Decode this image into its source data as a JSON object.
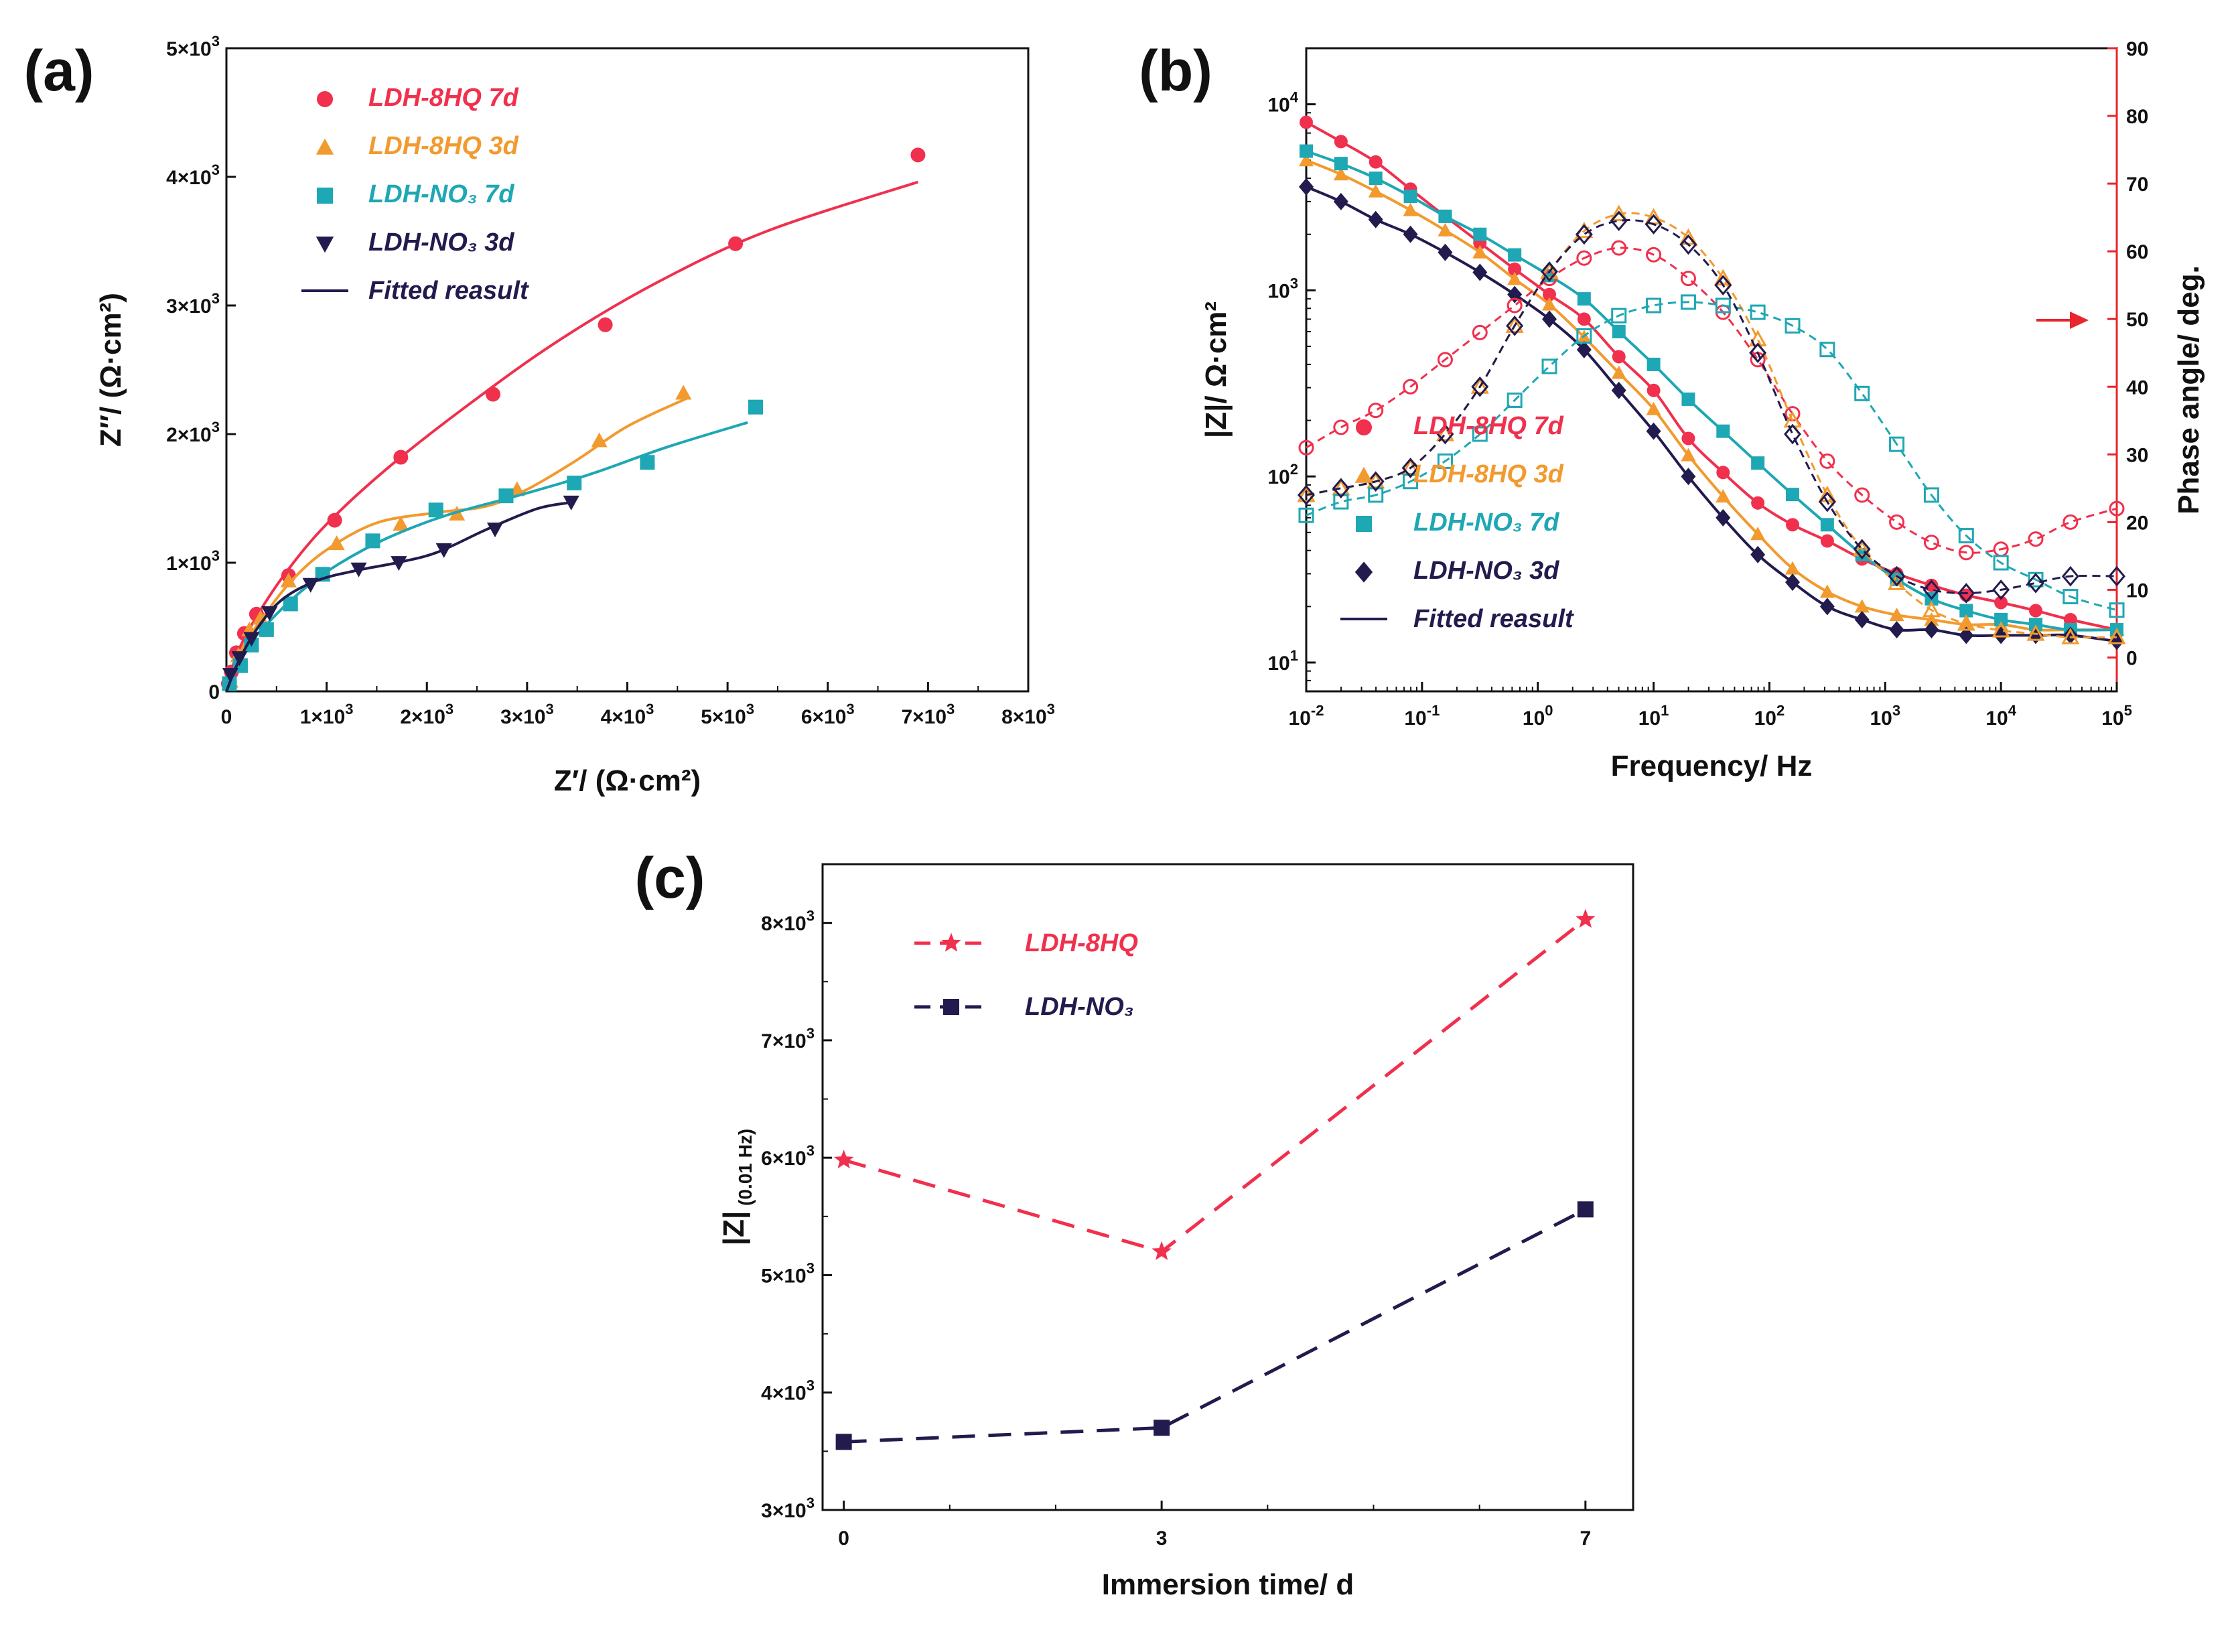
{
  "colors": {
    "red": "#F0304D",
    "orange": "#F29A2E",
    "teal": "#1EA7B4",
    "navy": "#221B4D",
    "phase_axis": "#E8242C"
  },
  "chart_data": [
    {
      "panel": "(a)",
      "type": "scatter",
      "subtype": "nyquist",
      "xlabel": "Z′/ (Ω·cm²)",
      "ylabel": "Z″/ (Ω·cm²)",
      "xlim": [
        0,
        8000
      ],
      "ylim": [
        0,
        5000
      ],
      "x_ticks": [
        "0",
        "1×10³",
        "2×10³",
        "3×10³",
        "4×10³",
        "5×10³",
        "6×10³",
        "7×10³",
        "8×10³"
      ],
      "y_ticks": [
        "0",
        "1×10³",
        "2×10³",
        "3×10³",
        "4×10³",
        "5×10³"
      ],
      "legend": [
        "LDH-8HQ 7d",
        "LDH-8HQ 3d",
        "LDH-NO₃ 7d",
        "LDH-NO₃ 3d",
        "Fitted reasult"
      ],
      "series": [
        {
          "name": "LDH-8HQ 7d",
          "color": "red",
          "marker": "circle",
          "x": [
            20,
            50,
            100,
            180,
            300,
            620,
            1080,
            1740,
            2660,
            3780,
            5080,
            6900
          ],
          "y": [
            60,
            150,
            300,
            450,
            600,
            900,
            1330,
            1820,
            2310,
            2850,
            3480,
            4170
          ],
          "fit_x": [
            0,
            100,
            300,
            600,
            1000,
            1600,
            2400,
            3300,
            4300,
            5400,
            6900
          ],
          "fit_y": [
            0,
            280,
            580,
            930,
            1300,
            1730,
            2220,
            2720,
            3180,
            3580,
            3960
          ]
        },
        {
          "name": "LDH-8HQ 3d",
          "color": "orange",
          "marker": "triangle",
          "x": [
            40,
            120,
            230,
            340,
            620,
            1100,
            1740,
            2300,
            2900,
            3720,
            4560
          ],
          "y": [
            80,
            280,
            480,
            570,
            860,
            1150,
            1300,
            1380,
            1570,
            1950,
            2320
          ],
          "fit_x": [
            0,
            150,
            350,
            650,
            1000,
            1500,
            2100,
            2600,
            3000,
            3500,
            4000,
            4600
          ],
          "fit_y": [
            0,
            320,
            560,
            860,
            1100,
            1310,
            1390,
            1440,
            1570,
            1800,
            2060,
            2280
          ]
        },
        {
          "name": "LDH-NO₃ 7d",
          "color": "teal",
          "marker": "square",
          "x": [
            30,
            140,
            250,
            400,
            640,
            960,
            1460,
            2090,
            2790,
            3470,
            4200,
            5280
          ],
          "y": [
            60,
            200,
            360,
            480,
            680,
            910,
            1170,
            1410,
            1520,
            1620,
            1780,
            2210
          ],
          "fit_x": [
            0,
            200,
            450,
            750,
            1100,
            1600,
            2200,
            2900,
            3600,
            4400,
            5200
          ],
          "fit_y": [
            0,
            330,
            560,
            780,
            980,
            1190,
            1370,
            1520,
            1680,
            1900,
            2090
          ]
        },
        {
          "name": "LDH-NO₃ 3d",
          "color": "navy",
          "marker": "triangle-down",
          "x": [
            40,
            130,
            250,
            430,
            840,
            1320,
            1720,
            2170,
            2680,
            3440
          ],
          "y": [
            130,
            260,
            410,
            610,
            830,
            950,
            1000,
            1100,
            1260,
            1470
          ],
          "fit_x": [
            0,
            120,
            300,
            550,
            900,
            1300,
            1700,
            2100,
            2600,
            3100,
            3450
          ],
          "fit_y": [
            0,
            230,
            480,
            710,
            860,
            940,
            1000,
            1080,
            1260,
            1420,
            1470
          ]
        }
      ]
    },
    {
      "panel": "(b)",
      "type": "line",
      "subtype": "bode",
      "xlabel": "Frequency/ Hz",
      "ylabel": "|Z|/ Ω·cm²",
      "ylabel_right": "Phase angle/ deg.",
      "x_scale": "log",
      "xlim": [
        0.01,
        100000
      ],
      "ylim": [
        7,
        20000
      ],
      "y2lim": [
        -5,
        90
      ],
      "x_ticks": [
        "10",
        "10",
        "10",
        "10",
        "10",
        "10",
        "10",
        "10"
      ],
      "x_tick_exp": [
        "-2",
        "-1",
        "0",
        "1",
        "2",
        "3",
        "4",
        "5"
      ],
      "y_ticks": [
        "10",
        "10",
        "10",
        "10"
      ],
      "y_tick_exp": [
        "1",
        "2",
        "3",
        "4"
      ],
      "y2_ticks": [
        "0",
        "10",
        "20",
        "30",
        "40",
        "50",
        "60",
        "70",
        "80",
        "90"
      ],
      "legend": [
        "LDH-8HQ 7d",
        "LDH-8HQ 3d",
        "LDH-NO₃ 7d",
        "LDH-NO₃ 3d",
        "Fitted reasult"
      ],
      "modulus_series": [
        {
          "name": "LDH-8HQ 7d",
          "color": "red",
          "marker": "circle",
          "logf": [
            -2,
            -1.7,
            -1.4,
            -1.1,
            -0.8,
            -0.5,
            -0.2,
            0.1,
            0.4,
            0.7,
            1,
            1.3,
            1.6,
            1.9,
            2.2,
            2.5,
            2.8,
            3.1,
            3.4,
            3.7,
            4,
            4.3,
            4.6,
            5
          ],
          "z": [
            8000,
            6300,
            4900,
            3500,
            2500,
            1800,
            1300,
            950,
            700,
            440,
            290,
            160,
            105,
            72,
            55,
            45,
            36,
            30,
            26,
            23,
            21,
            19,
            17,
            15
          ]
        },
        {
          "name": "LDH-8HQ 3d",
          "color": "orange",
          "marker": "triangle",
          "logf": [
            -2,
            -1.7,
            -1.4,
            -1.1,
            -0.8,
            -0.5,
            -0.2,
            0.1,
            0.4,
            0.7,
            1,
            1.3,
            1.6,
            1.9,
            2.2,
            2.5,
            2.8,
            3.1,
            3.4,
            3.7,
            4,
            4.3,
            4.6,
            5
          ],
          "z": [
            5000,
            4200,
            3400,
            2700,
            2100,
            1600,
            1150,
            840,
            560,
            360,
            230,
            130,
            78,
            49,
            32,
            24,
            20,
            18,
            17,
            16,
            16,
            15,
            15,
            15
          ]
        },
        {
          "name": "LDH-NO₃ 7d",
          "color": "teal",
          "marker": "square",
          "logf": [
            -2,
            -1.7,
            -1.4,
            -1.1,
            -0.8,
            -0.5,
            -0.2,
            0.1,
            0.4,
            0.7,
            1,
            1.3,
            1.6,
            1.9,
            2.2,
            2.5,
            2.8,
            3.1,
            3.4,
            3.7,
            4,
            4.3,
            4.6,
            5
          ],
          "z": [
            5600,
            4800,
            4000,
            3200,
            2500,
            2000,
            1550,
            1200,
            900,
            600,
            400,
            260,
            175,
            118,
            80,
            55,
            38,
            28,
            22,
            19,
            17,
            16,
            15,
            15
          ]
        },
        {
          "name": "LDH-NO₃ 3d",
          "color": "navy",
          "marker": "diamond",
          "logf": [
            -2,
            -1.7,
            -1.4,
            -1.1,
            -0.8,
            -0.5,
            -0.2,
            0.1,
            0.4,
            0.7,
            1,
            1.3,
            1.6,
            1.9,
            2.2,
            2.5,
            2.8,
            3.1,
            3.4,
            3.7,
            4,
            4.3,
            4.6,
            5
          ],
          "z": [
            3600,
            3000,
            2400,
            2000,
            1600,
            1250,
            950,
            700,
            480,
            290,
            175,
            100,
            60,
            38,
            27,
            20,
            17,
            15,
            15,
            14,
            14,
            14,
            14,
            13
          ]
        }
      ],
      "phase_series": [
        {
          "name": "LDH-8HQ 7d",
          "color": "red",
          "marker": "circle-open",
          "logf": [
            -2,
            -1.7,
            -1.4,
            -1.1,
            -0.8,
            -0.5,
            -0.2,
            0.1,
            0.4,
            0.7,
            1,
            1.3,
            1.6,
            1.9,
            2.2,
            2.5,
            2.8,
            3.1,
            3.4,
            3.7,
            4,
            4.3,
            4.6,
            5
          ],
          "phase": [
            31,
            34,
            36.5,
            40,
            44,
            48,
            52,
            56,
            59,
            60.5,
            59.5,
            56,
            51,
            44,
            36,
            29,
            24,
            20,
            17,
            15.5,
            16,
            17.5,
            20,
            22
          ]
        },
        {
          "name": "LDH-8HQ 3d",
          "color": "orange",
          "marker": "triangle-open",
          "logf": [
            -2,
            -1.7,
            -1.4,
            -1.1,
            -0.8,
            -0.5,
            -0.2,
            0.1,
            0.4,
            0.7,
            1,
            1.3,
            1.6,
            1.9,
            2.2,
            2.5,
            2.8,
            3.1,
            3.4,
            3.7,
            4,
            4.3,
            4.6,
            5
          ],
          "phase": [
            24,
            25,
            26,
            28,
            33,
            40,
            49,
            57,
            63,
            65.5,
            65,
            62,
            56,
            47,
            35,
            24,
            16,
            11,
            7,
            5,
            4,
            3.5,
            3,
            3
          ]
        },
        {
          "name": "LDH-NO₃ 7d",
          "color": "teal",
          "marker": "square-open",
          "logf": [
            -2,
            -1.7,
            -1.4,
            -1.1,
            -0.8,
            -0.5,
            -0.2,
            0.1,
            0.4,
            0.7,
            1,
            1.3,
            1.6,
            1.9,
            2.2,
            2.5,
            2.8,
            3.1,
            3.4,
            3.7,
            4,
            4.3,
            4.6,
            5
          ],
          "phase": [
            21,
            23,
            24,
            26,
            29,
            33,
            38,
            43,
            47.5,
            50.5,
            52,
            52.5,
            52,
            51,
            49,
            45.5,
            39,
            31.5,
            24,
            18,
            14,
            11.5,
            9,
            7
          ]
        },
        {
          "name": "LDH-NO₃ 3d",
          "color": "navy",
          "marker": "diamond-open",
          "logf": [
            -2,
            -1.7,
            -1.4,
            -1.1,
            -0.8,
            -0.5,
            -0.2,
            0.1,
            0.4,
            0.7,
            1,
            1.3,
            1.6,
            1.9,
            2.2,
            2.5,
            2.8,
            3.1,
            3.4,
            3.7,
            4,
            4.3,
            4.6,
            5
          ],
          "phase": [
            24,
            25,
            26,
            28,
            33,
            40,
            49,
            57,
            62.5,
            64.5,
            64,
            61,
            55,
            45,
            33,
            23,
            16,
            12,
            10,
            9.5,
            10,
            11,
            12,
            12
          ]
        }
      ]
    },
    {
      "panel": "(c)",
      "type": "line",
      "xlabel": "Immersion time/ d",
      "ylabel": "|Z|",
      "ylabel_sub": "(0.01 Hz)",
      "x_ticks": [
        "0",
        "3",
        "7"
      ],
      "y_ticks": [
        "3×10³",
        "4×10³",
        "5×10³",
        "6×10³",
        "7×10³",
        "8×10³"
      ],
      "xlim": [
        -0.2,
        7.45
      ],
      "ylim": [
        3000,
        8500
      ],
      "categories": [
        0,
        3,
        7
      ],
      "series": [
        {
          "name": "LDH-8HQ",
          "color": "red",
          "marker": "star",
          "values": [
            5980,
            5200,
            8030
          ]
        },
        {
          "name": "LDH-NO₃",
          "color": "navy",
          "marker": "square",
          "values": [
            3580,
            3700,
            5560
          ]
        }
      ]
    }
  ]
}
